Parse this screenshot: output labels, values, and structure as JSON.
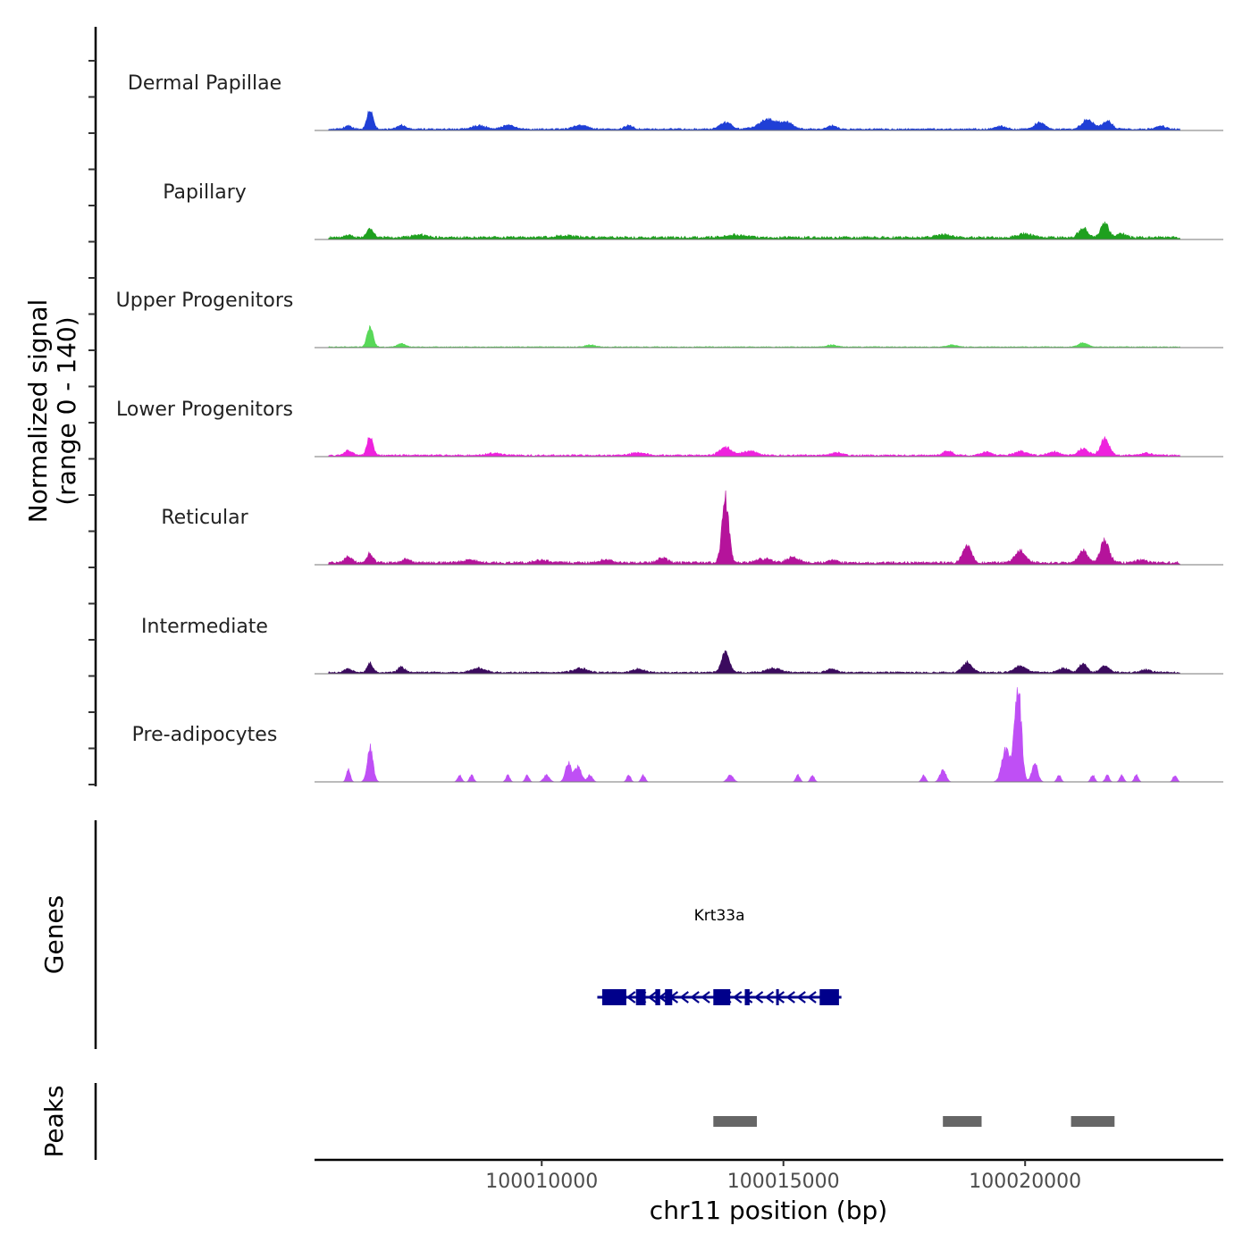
{
  "chart_data": {
    "type": "area",
    "title": "",
    "xlabel": "chr11 position (bp)",
    "ylabel": "Normalized signal",
    "ylabel_range": "(range 0 - 140)",
    "xlim": [
      100005300,
      100024100
    ],
    "x_ticks": [
      100010000,
      100015000,
      100020000
    ],
    "x_tick_labels": [
      "100010000",
      "100015000",
      "100020000"
    ],
    "ylim": [
      0,
      140
    ],
    "tracks": [
      {
        "name": "Dermal Papillae",
        "color": "#1f3fd6",
        "peaks": [
          [
            100006000,
            5,
            80
          ],
          [
            100006450,
            28,
            60
          ],
          [
            100007100,
            6,
            80
          ],
          [
            100008700,
            5,
            150
          ],
          [
            100009300,
            6,
            120
          ],
          [
            100010800,
            6,
            140
          ],
          [
            100011800,
            6,
            80
          ],
          [
            100013800,
            10,
            120
          ],
          [
            100014700,
            14,
            200
          ],
          [
            100015100,
            8,
            120
          ],
          [
            100016000,
            5,
            100
          ],
          [
            100019500,
            4,
            100
          ],
          [
            100020300,
            10,
            100
          ],
          [
            100021300,
            14,
            120
          ],
          [
            100021700,
            12,
            100
          ],
          [
            100022800,
            5,
            100
          ]
        ],
        "baseline": 2
      },
      {
        "name": "Papillary",
        "color": "#1ea01e",
        "peaks": [
          [
            100006000,
            4,
            80
          ],
          [
            100006450,
            12,
            70
          ],
          [
            100007500,
            4,
            150
          ],
          [
            100010500,
            3,
            200
          ],
          [
            100014000,
            4,
            200
          ],
          [
            100018300,
            4,
            150
          ],
          [
            100020000,
            5,
            150
          ],
          [
            100021200,
            14,
            90
          ],
          [
            100021650,
            22,
            80
          ],
          [
            100022000,
            5,
            100
          ]
        ],
        "baseline": 3
      },
      {
        "name": "Upper Progenitors",
        "color": "#58d858",
        "peaks": [
          [
            100006450,
            30,
            60
          ],
          [
            100007100,
            5,
            80
          ],
          [
            100011000,
            3,
            100
          ],
          [
            100016000,
            3,
            100
          ],
          [
            100018500,
            3,
            100
          ],
          [
            100021200,
            6,
            100
          ]
        ],
        "baseline": 1
      },
      {
        "name": "Lower Progenitors",
        "color": "#ee22dd",
        "peaks": [
          [
            100006000,
            7,
            80
          ],
          [
            100006450,
            28,
            60
          ],
          [
            100009000,
            3,
            150
          ],
          [
            100012000,
            4,
            150
          ],
          [
            100013800,
            12,
            120
          ],
          [
            100014300,
            6,
            150
          ],
          [
            100016100,
            4,
            100
          ],
          [
            100018400,
            6,
            100
          ],
          [
            100019200,
            5,
            100
          ],
          [
            100019900,
            6,
            120
          ],
          [
            100020600,
            5,
            120
          ],
          [
            100021200,
            10,
            100
          ],
          [
            100021650,
            24,
            90
          ],
          [
            100022500,
            3,
            100
          ]
        ],
        "baseline": 2
      },
      {
        "name": "Reticular",
        "color": "#b5139b",
        "peaks": [
          [
            100006000,
            8,
            80
          ],
          [
            100006450,
            14,
            60
          ],
          [
            100007200,
            6,
            80
          ],
          [
            100008500,
            4,
            150
          ],
          [
            100010000,
            4,
            150
          ],
          [
            100011300,
            5,
            120
          ],
          [
            100012500,
            7,
            100
          ],
          [
            100013800,
            95,
            70
          ],
          [
            100014600,
            6,
            150
          ],
          [
            100015200,
            8,
            120
          ],
          [
            100016000,
            4,
            100
          ],
          [
            100018800,
            26,
            90
          ],
          [
            100019900,
            18,
            110
          ],
          [
            100021200,
            18,
            90
          ],
          [
            100021650,
            32,
            90
          ],
          [
            100022400,
            4,
            100
          ]
        ],
        "baseline": 3
      },
      {
        "name": "Intermediate",
        "color": "#3b0a5e",
        "peaks": [
          [
            100006000,
            5,
            80
          ],
          [
            100006450,
            14,
            60
          ],
          [
            100007100,
            8,
            70
          ],
          [
            100008700,
            6,
            150
          ],
          [
            100010800,
            6,
            140
          ],
          [
            100012000,
            5,
            120
          ],
          [
            100013800,
            30,
            80
          ],
          [
            100014800,
            6,
            150
          ],
          [
            100016000,
            5,
            100
          ],
          [
            100018800,
            14,
            100
          ],
          [
            100019900,
            9,
            120
          ],
          [
            100020800,
            6,
            100
          ],
          [
            100021200,
            13,
            80
          ],
          [
            100021650,
            10,
            90
          ],
          [
            100022500,
            4,
            100
          ]
        ],
        "baseline": 2
      },
      {
        "name": "Pre-adipocytes",
        "color": "#bf4ff5",
        "peaks": [
          [
            100006000,
            18,
            40
          ],
          [
            100006450,
            50,
            60
          ],
          [
            100008300,
            10,
            40
          ],
          [
            100008550,
            10,
            40
          ],
          [
            100009300,
            10,
            40
          ],
          [
            100009700,
            10,
            40
          ],
          [
            100010100,
            10,
            60
          ],
          [
            100010550,
            28,
            60
          ],
          [
            100010750,
            22,
            70
          ],
          [
            100011000,
            10,
            50
          ],
          [
            100011800,
            10,
            40
          ],
          [
            100012100,
            10,
            40
          ],
          [
            100013900,
            10,
            60
          ],
          [
            100015300,
            10,
            40
          ],
          [
            100015600,
            10,
            40
          ],
          [
            100017900,
            10,
            40
          ],
          [
            100018300,
            18,
            60
          ],
          [
            100019600,
            48,
            80
          ],
          [
            100019850,
            140,
            70
          ],
          [
            100020200,
            28,
            60
          ],
          [
            100020700,
            10,
            40
          ],
          [
            100021400,
            10,
            40
          ],
          [
            100021700,
            10,
            40
          ],
          [
            100022000,
            10,
            40
          ],
          [
            100022300,
            10,
            40
          ],
          [
            100023100,
            10,
            40
          ]
        ],
        "baseline": 0
      }
    ],
    "genes": {
      "label": "Genes",
      "items": [
        {
          "name": "Krt33a",
          "start": 100011150,
          "end": 100016200,
          "strand": "-",
          "color": "#00008b",
          "exons": [
            [
              100011250,
              100011750
            ],
            [
              100011950,
              100012150
            ],
            [
              100012350,
              100012450
            ],
            [
              100012550,
              100012700
            ],
            [
              100013550,
              100013900
            ],
            [
              100014200,
              100014300
            ],
            [
              100014850,
              100014900
            ],
            [
              100015750,
              100016150
            ]
          ]
        }
      ]
    },
    "peaks_track": {
      "label": "Peaks",
      "color": "#666666",
      "regions": [
        [
          100013550,
          100014450
        ],
        [
          100018300,
          100019100
        ],
        [
          100020950,
          100021850
        ]
      ]
    }
  }
}
